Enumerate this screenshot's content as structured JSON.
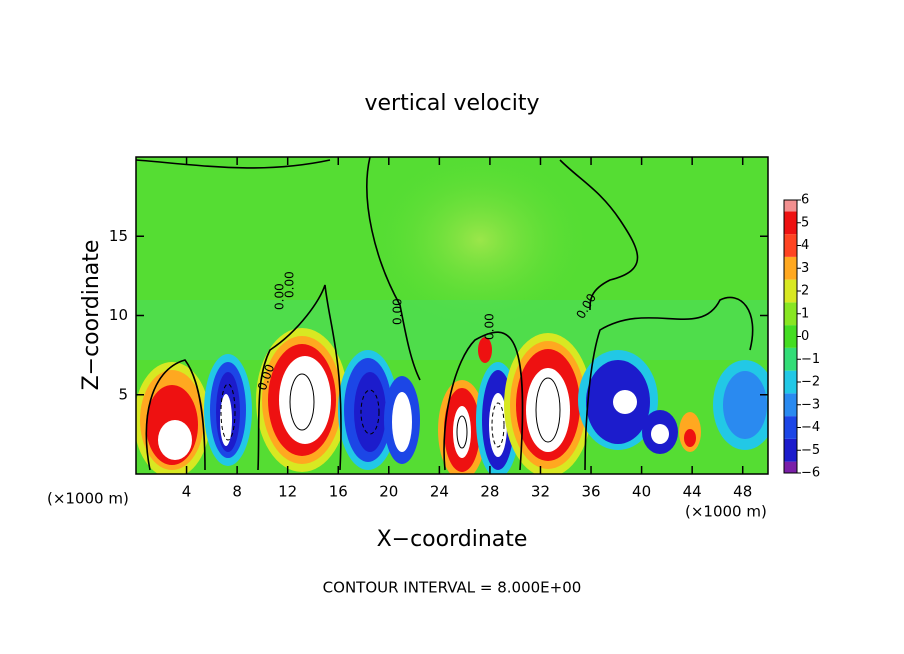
{
  "chart_data": {
    "type": "contour",
    "title": "vertical velocity",
    "xlabel": "X−coordinate",
    "ylabel": "Z−coordinate",
    "x_unit_left": "(×1000 m)",
    "x_unit_right": "(×1000 m)",
    "xlim": [
      0,
      50
    ],
    "xticks": [
      4,
      8,
      12,
      16,
      20,
      24,
      28,
      32,
      36,
      40,
      44,
      48
    ],
    "ylim": [
      0,
      20
    ],
    "yticks": [
      5,
      10,
      15
    ],
    "contour_labels": [
      "0.00",
      "0.00",
      "0.00",
      "0.00",
      "0.00",
      "0.00"
    ],
    "footer": "CONTOUR INTERVAL = 8.000E+00",
    "colorbar": {
      "levels": [
        -6,
        -5,
        -4,
        -3,
        -2,
        -1,
        0,
        1,
        2,
        3,
        4,
        5,
        6
      ],
      "level_labels": [
        {
          "value": -6,
          "label": "−6"
        },
        {
          "value": -5,
          "label": "−5"
        },
        {
          "value": -4,
          "label": "−4"
        },
        {
          "value": -3,
          "label": "−3"
        },
        {
          "value": -2,
          "label": "−2"
        },
        {
          "value": -1,
          "label": "−1"
        },
        0,
        1,
        2,
        3,
        4,
        5,
        6
      ],
      "colors": [
        "#7a1fa8",
        "#1c1ccc",
        "#1c46e6",
        "#2a8af0",
        "#22c8e6",
        "#33dd77",
        "#44dd22",
        "#88e622",
        "#d8e822",
        "#ffa820",
        "#ff4422",
        "#ee1111",
        "#f29090"
      ]
    }
  }
}
